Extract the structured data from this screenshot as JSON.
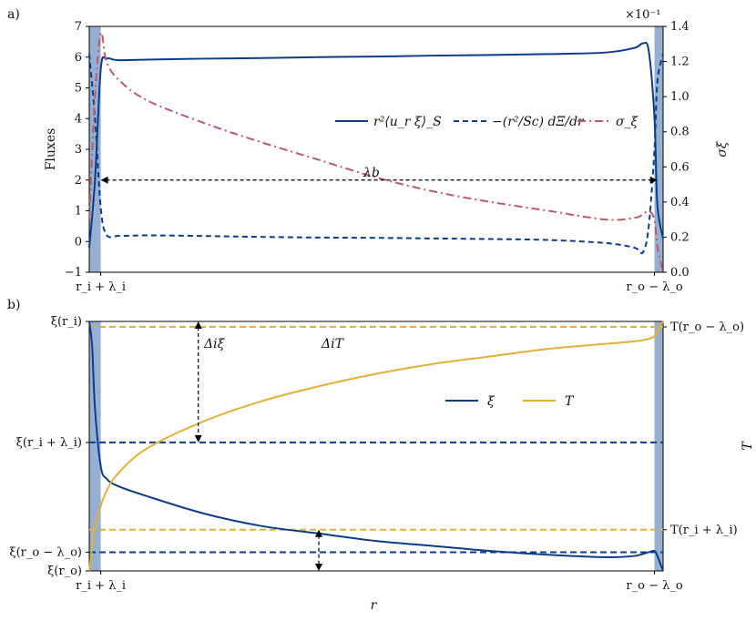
{
  "colors": {
    "blue": "#0b3d8c",
    "red": "#c0586a",
    "gold": "#e3b035",
    "band": "#7a9cc6"
  },
  "chart_data": [
    {
      "panel_label": "a)",
      "type": "line",
      "ylabel": "Fluxes",
      "y2label": "σ_ξ",
      "ylim": [
        -1,
        7
      ],
      "y2lim": [
        0.0,
        1.4
      ],
      "y2_multiplier": "×10⁻¹",
      "yticks": [
        "−1",
        "0",
        "1",
        "2",
        "3",
        "4",
        "5",
        "6",
        "7"
      ],
      "y2ticks": [
        "0.0",
        "0.2",
        "0.4",
        "0.6",
        "0.8",
        "1.0",
        "1.2",
        "1.4"
      ],
      "xlim": [
        0,
        1
      ],
      "xtick_labels": [
        "r_i + λ_i",
        "r_o − λ_o"
      ],
      "x": [
        0.0,
        0.01,
        0.02,
        0.03,
        0.05,
        0.1,
        0.2,
        0.3,
        0.4,
        0.5,
        0.6,
        0.7,
        0.8,
        0.9,
        0.95,
        0.965,
        0.975,
        0.985,
        0.99,
        1.0
      ],
      "legend": [
        "r²⟨u_r ξ⟩_S",
        "−(r²/Sc) dΞ/dr",
        "σ_ξ"
      ],
      "series": [
        {
          "name": "r²⟨u_r ξ⟩_S",
          "style": "solid",
          "color": "blue",
          "axis": "left",
          "values": [
            -0.2,
            2.0,
            5.6,
            5.95,
            5.9,
            5.92,
            5.95,
            5.97,
            6.0,
            6.02,
            6.05,
            6.07,
            6.1,
            6.15,
            6.3,
            6.45,
            6.2,
            4.0,
            1.2,
            0.1
          ]
        },
        {
          "name": "−(r²/Sc) dΞ/dr",
          "style": "dashed",
          "color": "blue",
          "axis": "left",
          "values": [
            6.1,
            4.0,
            1.1,
            0.22,
            0.18,
            0.2,
            0.18,
            0.15,
            0.13,
            0.12,
            0.1,
            0.08,
            0.05,
            -0.05,
            -0.2,
            -0.35,
            0.5,
            3.0,
            5.2,
            6.1
          ]
        },
        {
          "name": "σ_ξ",
          "style": "dashdot",
          "color": "red",
          "axis": "right",
          "values": [
            0.3,
            1.0,
            1.36,
            1.2,
            1.1,
            0.98,
            0.85,
            0.74,
            0.64,
            0.54,
            0.46,
            0.4,
            0.35,
            0.3,
            0.31,
            0.33,
            0.35,
            0.3,
            0.15,
            0.0
          ]
        }
      ],
      "annotations": [
        {
          "text": "λ_b",
          "type": "double-arrow",
          "x_from": 0.02,
          "x_to": 0.99,
          "y": 2
        }
      ],
      "shaded_regions": [
        [
          0.0,
          0.02
        ],
        [
          0.985,
          1.0
        ]
      ]
    },
    {
      "panel_label": "b)",
      "type": "line",
      "xlabel": "r",
      "y2label": "T",
      "xlim": [
        0,
        1
      ],
      "xtick_labels": [
        "r_i + λ_i",
        "r_o − λ_o"
      ],
      "ytick_labels": [
        "ξ(r_i)",
        "ξ(r_i + λ_i)",
        "ξ(r_o − λ_o)",
        "ξ(r_o)"
      ],
      "y2tick_labels": [
        "T(r_o − λ_o)",
        "T(r_i + λ_i)"
      ],
      "ylim": [
        0,
        1
      ],
      "x": [
        0.0,
        0.005,
        0.01,
        0.02,
        0.03,
        0.05,
        0.1,
        0.2,
        0.3,
        0.4,
        0.5,
        0.6,
        0.7,
        0.8,
        0.9,
        0.95,
        0.975,
        0.985,
        0.99,
        1.0
      ],
      "legend": [
        "ξ",
        "T"
      ],
      "series": [
        {
          "name": "ξ",
          "color": "blue",
          "values": [
            1.0,
            0.9,
            0.65,
            0.42,
            0.37,
            0.34,
            0.3,
            0.23,
            0.18,
            0.15,
            0.12,
            0.1,
            0.08,
            0.065,
            0.055,
            0.06,
            0.075,
            0.08,
            0.06,
            0.0
          ]
        },
        {
          "name": "T",
          "color": "gold",
          "values": [
            0.0,
            0.1,
            0.18,
            0.26,
            0.32,
            0.39,
            0.49,
            0.6,
            0.68,
            0.74,
            0.79,
            0.83,
            0.86,
            0.89,
            0.91,
            0.92,
            0.93,
            0.94,
            0.96,
            1.0
          ]
        }
      ],
      "reference_lines": [
        {
          "value": 0.978,
          "color": "gold",
          "style": "dashed"
        },
        {
          "value": 0.515,
          "color": "blue",
          "style": "dashed"
        },
        {
          "value": 0.165,
          "color": "gold",
          "style": "dashed"
        },
        {
          "value": 0.075,
          "color": "blue",
          "style": "dashed"
        }
      ],
      "annotations": [
        {
          "text": "Δ_i ξ",
          "type": "double-arrow",
          "x": 0.19,
          "y_from": 0.515,
          "y_to": 1.0
        },
        {
          "text": "Δ_i T",
          "type": "label",
          "x": 0.42,
          "y": 0.9
        },
        {
          "text": "",
          "type": "double-arrow",
          "x": 0.4,
          "y_from": 0.0,
          "y_to": 0.165
        }
      ],
      "shaded_regions": [
        [
          0.0,
          0.02
        ],
        [
          0.985,
          1.0
        ]
      ]
    }
  ],
  "panel_a": {
    "label": "a)",
    "ylabel": "Fluxes",
    "y2label": "σξ",
    "multiplier": "×10⁻¹",
    "lambda_b": "λb"
  },
  "panel_b": {
    "label": "b)",
    "xlabel": "r",
    "y2label": "T",
    "delta_xi": "Δiξ",
    "delta_T": "ΔiT"
  }
}
